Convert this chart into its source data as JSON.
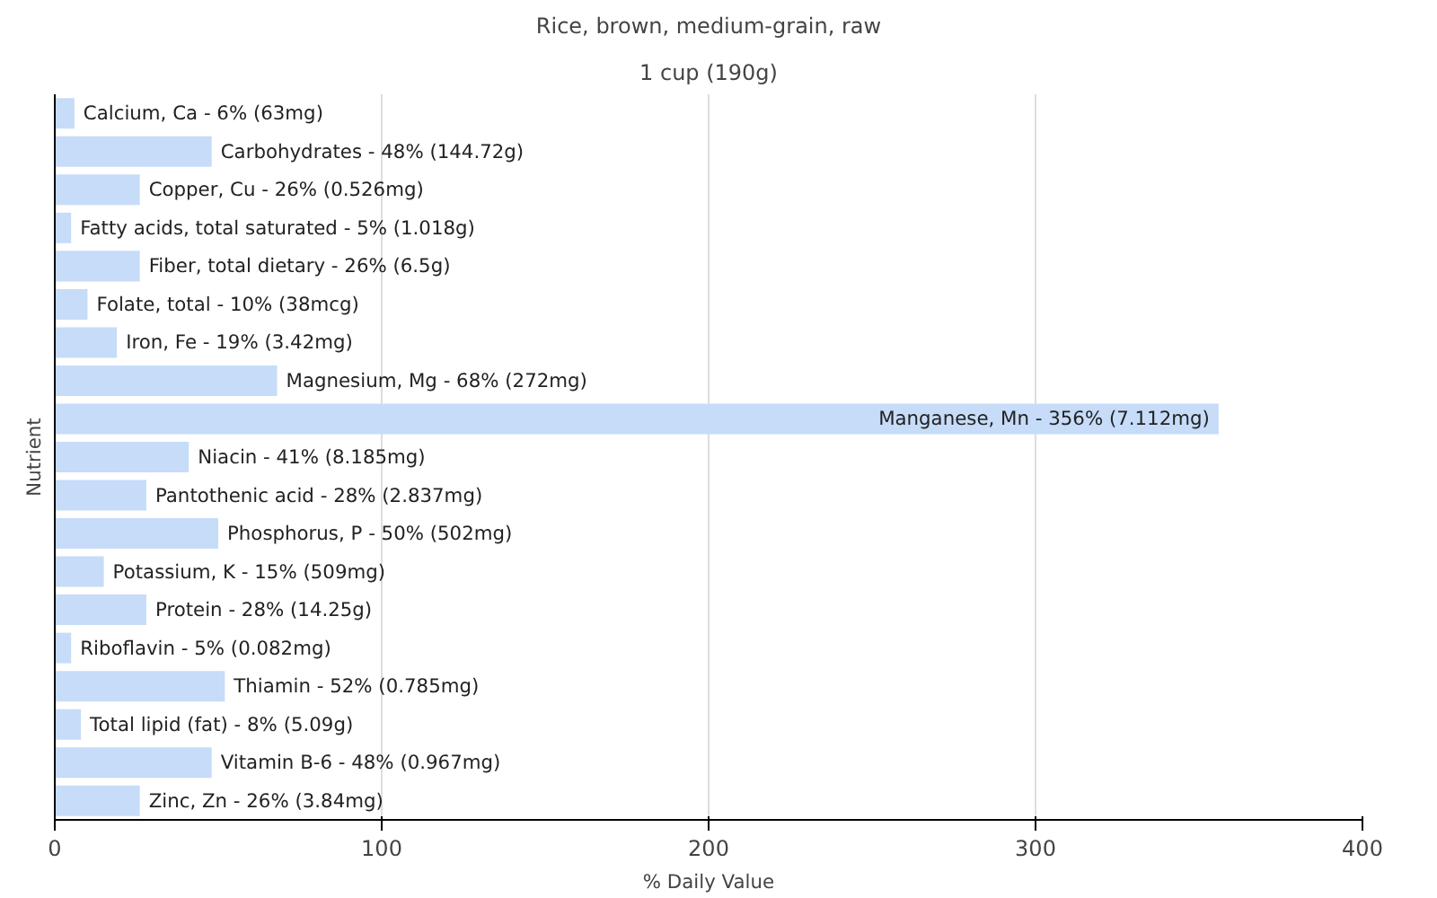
{
  "chart_data": {
    "type": "bar",
    "orientation": "horizontal",
    "title": "Rice, brown, medium-grain, raw",
    "subtitle": "1 cup (190g)",
    "xlabel": "% Daily Value",
    "ylabel": "Nutrient",
    "categories": [
      "Calcium, Ca - 6% (63mg)",
      "Carbohydrates - 48% (144.72g)",
      "Copper, Cu - 26% (0.526mg)",
      "Fatty acids, total saturated - 5% (1.018g)",
      "Fiber, total dietary - 26% (6.5g)",
      "Folate, total - 10% (38mcg)",
      "Iron, Fe - 19% (3.42mg)",
      "Magnesium, Mg - 68% (272mg)",
      "Manganese, Mn - 356% (7.112mg)",
      "Niacin - 41% (8.185mg)",
      "Pantothenic acid - 28% (2.837mg)",
      "Phosphorus, P - 50% (502mg)",
      "Potassium, K - 15% (509mg)",
      "Protein - 28% (14.25g)",
      "Riboflavin - 5% (0.082mg)",
      "Thiamin - 52% (0.785mg)",
      "Total lipid (fat) - 8% (5.09g)",
      "Vitamin B-6 - 48% (0.967mg)",
      "Zinc, Zn - 26% (3.84mg)"
    ],
    "values": [
      6,
      48,
      26,
      5,
      26,
      10,
      19,
      68,
      356,
      41,
      28,
      50,
      15,
      28,
      5,
      52,
      8,
      48,
      26
    ],
    "color": "#c6dcf8",
    "xlim": [
      0,
      400
    ],
    "xticks": [
      0,
      100,
      200,
      300,
      400
    ],
    "grid": "x",
    "tick_labels": "x"
  }
}
